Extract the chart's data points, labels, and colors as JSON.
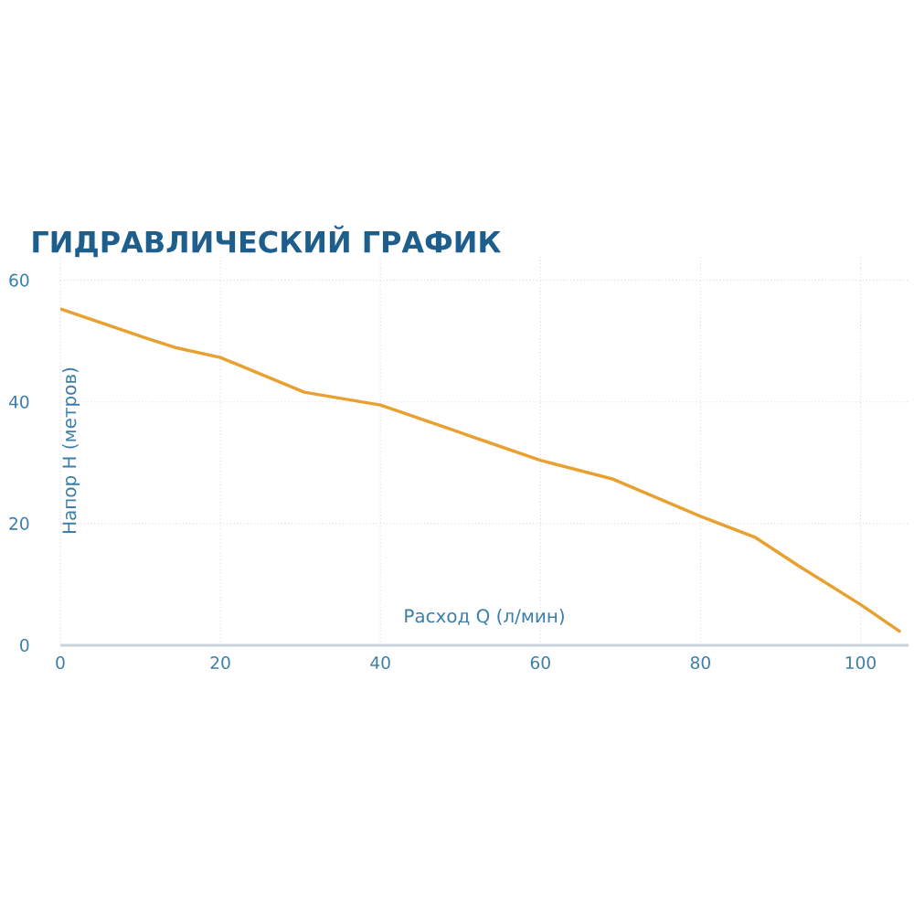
{
  "chart_data": {
    "type": "line",
    "title": "ГИДРАВЛИЧЕСКИЙ ГРАФИК",
    "xlabel": "Расход Q (л/мин)",
    "ylabel": "Напор H (метров)",
    "x": [
      0,
      10.7,
      14.5,
      20,
      30.5,
      40,
      48.8,
      60,
      69.1,
      80,
      86.9,
      92.2,
      100,
      105
    ],
    "series": [
      {
        "color": "#e8a030",
        "values": [
          55.3,
          50.5,
          48.9,
          47.3,
          41.6,
          39.5,
          35.5,
          30.4,
          27.3,
          21.2,
          17.7,
          13.1,
          6.7,
          2.2
        ]
      }
    ],
    "xlim": [
      0,
      106
    ],
    "ylim": [
      0,
      64
    ],
    "xticks": [
      0,
      20,
      40,
      60,
      80,
      100
    ],
    "yticks": [
      0,
      20,
      40,
      60
    ],
    "grid": true
  }
}
